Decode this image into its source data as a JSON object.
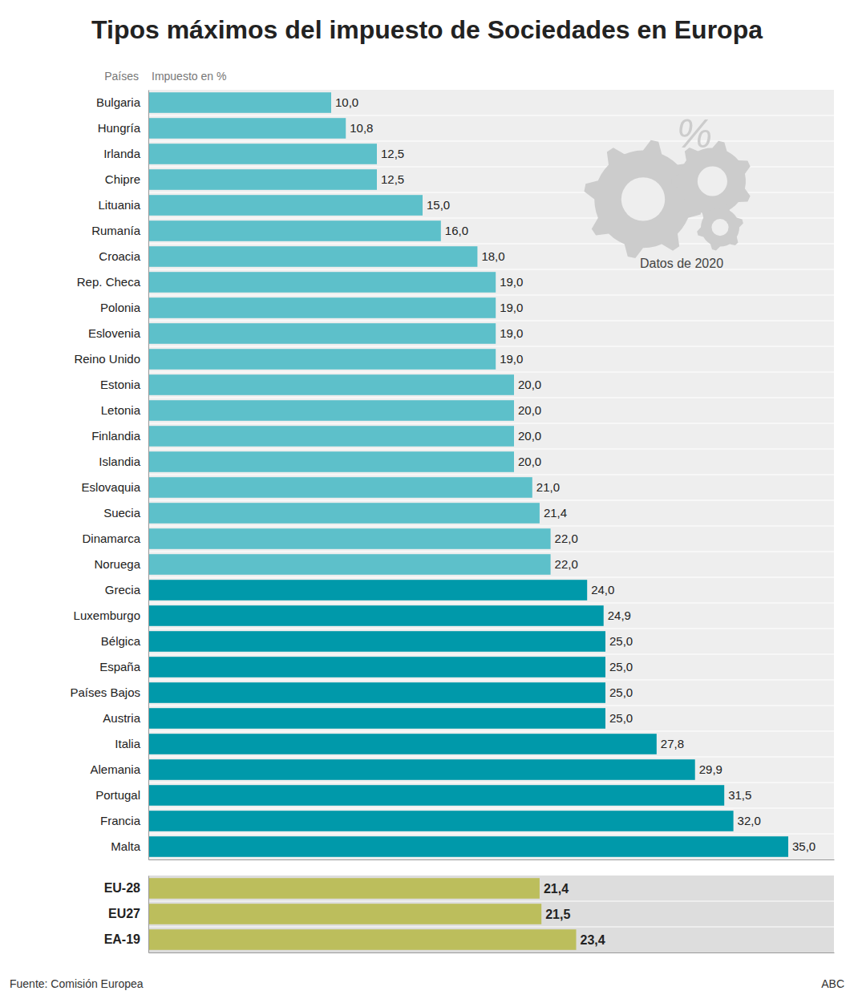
{
  "chart_data": [
    {
      "type": "bar",
      "orientation": "horizontal",
      "title": "Tipos máximos del impuesto de Sociedades en Europa",
      "xlabel": "Impuesto en %",
      "ylabel": "Países",
      "categories": [
        "Bulgaria",
        "Hungría",
        "Irlanda",
        "Chipre",
        "Lituania",
        "Rumanía",
        "Croacia",
        "Rep. Checa",
        "Polonia",
        "Eslovenia",
        "Reino Unido",
        "Estonia",
        "Letonia",
        "Finlandia",
        "Islandia",
        "Eslovaquia",
        "Suecia",
        "Dinamarca",
        "Noruega",
        "Grecia",
        "Luxemburgo",
        "Bélgica",
        "España",
        "Países Bajos",
        "Austria",
        "Italia",
        "Alemania",
        "Portugal",
        "Francia",
        "Malta"
      ],
      "values": [
        10.0,
        10.8,
        12.5,
        12.5,
        15.0,
        16.0,
        18.0,
        19.0,
        19.0,
        19.0,
        19.0,
        20.0,
        20.0,
        20.0,
        20.0,
        21.0,
        21.4,
        22.0,
        22.0,
        24.0,
        24.9,
        25.0,
        25.0,
        25.0,
        25.0,
        27.8,
        29.9,
        31.5,
        32.0,
        35.0
      ],
      "value_labels": [
        "10,0",
        "10,8",
        "12,5",
        "12,5",
        "15,0",
        "16,0",
        "18,0",
        "19,0",
        "19,0",
        "19,0",
        "19,0",
        "20,0",
        "20,0",
        "20,0",
        "20,0",
        "21,0",
        "21,4",
        "22,0",
        "22,0",
        "24,0",
        "24,9",
        "25,0",
        "25,0",
        "25,0",
        "25,0",
        "27,8",
        "29,9",
        "31,5",
        "32,0",
        "35,0"
      ],
      "colors": [
        "#5DC0CA",
        "#5DC0CA",
        "#5DC0CA",
        "#5DC0CA",
        "#5DC0CA",
        "#5DC0CA",
        "#5DC0CA",
        "#5DC0CA",
        "#5DC0CA",
        "#5DC0CA",
        "#5DC0CA",
        "#5DC0CA",
        "#5DC0CA",
        "#5DC0CA",
        "#5DC0CA",
        "#5DC0CA",
        "#5DC0CA",
        "#5DC0CA",
        "#5DC0CA",
        "#0099AA",
        "#0099AA",
        "#0099AA",
        "#0099AA",
        "#0099AA",
        "#0099AA",
        "#0099AA",
        "#0099AA",
        "#0099AA",
        "#0099AA",
        "#0099AA"
      ],
      "xlim": [
        0,
        37.5
      ],
      "data_labels": true,
      "tick_labels": "y",
      "grid": false,
      "annotations": [
        "%",
        "Datos de 2020",
        "Fuente: Comisión Europea",
        "ABC"
      ]
    },
    {
      "type": "bar",
      "orientation": "horizontal",
      "categories": [
        "EU-28",
        "EU27",
        "EA-19"
      ],
      "values": [
        21.4,
        21.5,
        23.4
      ],
      "value_labels": [
        "21,4",
        "21,5",
        "23,4"
      ],
      "color": "#BCBE5C",
      "xlim": [
        0,
        37.5
      ],
      "data_labels": true,
      "tick_labels": "y",
      "grid": false
    }
  ]
}
